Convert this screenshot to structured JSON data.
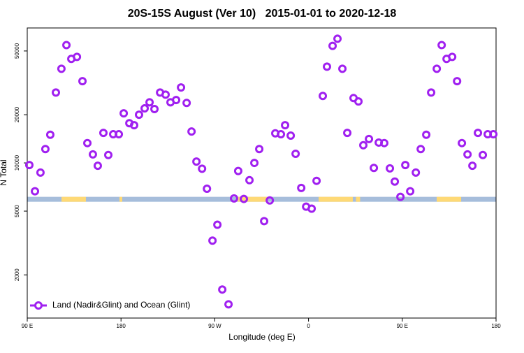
{
  "chart_data": {
    "type": "scatter",
    "title": "20S-15S August (Ver 10)   2015-01-01 to 2020-12-18",
    "x_label": "Longitude (deg E)",
    "y_label": "N Total",
    "xlim": [
      90,
      540
    ],
    "xticks": [
      {
        "value": 90,
        "label": "90 E"
      },
      180,
      {
        "value": 270,
        "label": "90 W"
      },
      {
        "value": 360,
        "label": "0"
      },
      {
        "value": 450,
        "label": "90 E"
      },
      {
        "value": 540,
        "label": "180"
      }
    ],
    "ylim": [
      1075,
      69600
    ],
    "log_y": true,
    "yticks": [
      2000,
      5000,
      10000,
      20000,
      50000
    ],
    "legend": "bottom-left",
    "series": [
      {
        "name": "Land (Nadir&Glint) and Ocean (Glint)",
        "color": "#a020f0",
        "x": [
          92.0,
          97.4,
          102.7,
          107.4,
          112.1,
          117.5,
          122.8,
          127.6,
          132.3,
          137.7,
          143.0,
          147.7,
          153.0,
          157.7,
          163.1,
          167.8,
          172.5,
          177.9,
          182.6,
          188.0,
          192.6,
          197.3,
          202.7,
          207.4,
          212.1,
          217.5,
          222.8,
          227.5,
          232.9,
          237.6,
          243.0,
          247.7,
          252.4,
          257.8,
          262.5,
          267.8,
          272.5,
          277.2,
          283.2,
          288.5,
          292.5,
          297.9,
          303.3,
          308.0,
          312.7,
          317.4,
          322.8,
          328.1,
          333.5,
          337.5,
          342.9,
          347.6,
          353.0,
          357.7,
          363.0,
          367.7,
          373.7,
          377.7,
          383.1,
          387.8,
          392.5,
          397.2,
          403.2,
          407.9,
          412.6,
          418.0,
          422.7,
          427.4,
          432.7,
          438.1,
          442.8,
          448.2,
          452.9,
          457.6,
          463.0,
          467.7,
          473.0,
          477.7,
          483.1,
          487.8,
          492.5,
          497.9,
          502.6,
          507.2,
          512.6,
          517.3,
          522.6,
          527.3,
          532.0,
          537.4
        ],
        "values": [
          9700,
          6650,
          8700,
          12200,
          15000,
          27500,
          38700,
          54400,
          44600,
          45900,
          32400,
          13300,
          11300,
          9600,
          15400,
          11200,
          15100,
          15100,
          20400,
          17700,
          17200,
          20000,
          21900,
          23900,
          21700,
          27500,
          26700,
          23900,
          24700,
          29600,
          23700,
          15700,
          10200,
          9200,
          6900,
          3270,
          4110,
          1620,
          1310,
          6000,
          8900,
          5960,
          7800,
          10000,
          12200,
          4330,
          5830,
          15300,
          15100,
          17200,
          14800,
          11400,
          6980,
          5330,
          5180,
          7730,
          26200,
          39900,
          53800,
          59600,
          38700,
          15400,
          25400,
          24200,
          12900,
          14100,
          9300,
          13400,
          13300,
          9250,
          7650,
          6140,
          9700,
          6650,
          8700,
          12200,
          15000,
          27500,
          38700,
          54400,
          44600,
          45900,
          32400,
          13300,
          11300,
          9600,
          15400,
          11200,
          15100,
          15100
        ]
      }
    ],
    "surface_strip": {
      "ylim": [
        5720,
        6140
      ],
      "ocean_color": "#a6bddb",
      "land_color": "#fed976",
      "land": [
        [
          122.9,
          146.3
        ],
        [
          178.5,
          181.2
        ],
        [
          292.0,
          320.7
        ],
        [
          369.7,
          402.5
        ],
        [
          405.5,
          409.5
        ],
        [
          483.0,
          506.5
        ]
      ]
    }
  }
}
